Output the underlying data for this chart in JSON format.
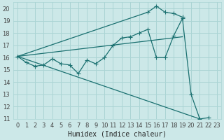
{
  "xlabel": "Humidex (Indice chaleur)",
  "bg_color": "#cce8e8",
  "line_color": "#1a7070",
  "grid_color": "#aad4d4",
  "xlim": [
    -0.5,
    23.5
  ],
  "ylim": [
    11,
    20.5
  ],
  "xticks": [
    0,
    1,
    2,
    3,
    4,
    5,
    6,
    7,
    8,
    9,
    10,
    11,
    12,
    13,
    14,
    15,
    16,
    17,
    18,
    19,
    20,
    21,
    22,
    23
  ],
  "yticks": [
    11,
    12,
    13,
    14,
    15,
    16,
    17,
    18,
    19,
    20
  ],
  "line1_x": [
    0,
    1,
    2,
    3,
    4,
    5,
    6,
    7,
    8,
    9,
    10,
    11,
    12,
    13,
    14,
    15,
    16,
    17,
    18,
    19,
    20,
    21,
    22
  ],
  "line1_y": [
    16.1,
    15.6,
    15.3,
    15.4,
    15.9,
    15.5,
    15.4,
    14.7,
    15.8,
    15.5,
    16.0,
    17.0,
    17.6,
    17.7,
    18.0,
    18.3,
    16.0,
    16.0,
    17.8,
    19.2,
    13.0,
    11.0,
    11.1
  ],
  "line2_x": [
    0,
    15,
    16,
    17,
    18,
    19
  ],
  "line2_y": [
    16.1,
    19.7,
    20.2,
    19.7,
    19.6,
    19.3
  ],
  "line3_x": [
    0,
    19
  ],
  "line3_y": [
    16.1,
    17.7
  ],
  "line4_x": [
    0,
    21
  ],
  "line4_y": [
    16.1,
    11.0
  ],
  "xlabel_fontsize": 7,
  "tick_fontsize": 6
}
